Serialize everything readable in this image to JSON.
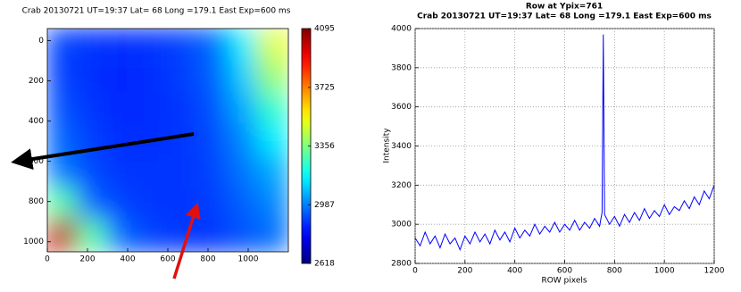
{
  "chart_data": [
    {
      "type": "heatmap",
      "title": "Crab 20130721 UT=19:37 Lat= 68 Long =179.1 East  Exp=600 ms",
      "xlim": [
        0,
        1200
      ],
      "ylim": [
        1050,
        -60
      ],
      "xticks": [
        0,
        200,
        400,
        600,
        800,
        1000
      ],
      "yticks": [
        0,
        200,
        400,
        600,
        800,
        1000
      ],
      "colormap": "jet",
      "clim": [
        2618,
        4095
      ],
      "cticks": [
        2618,
        2987,
        3356,
        3725,
        4095
      ],
      "values": [
        [
          2900,
          2880,
          2870,
          2880,
          2900,
          2950,
          3150,
          3500
        ],
        [
          2900,
          2870,
          2860,
          2870,
          2890,
          2940,
          3100,
          3400
        ],
        [
          2920,
          2880,
          2860,
          2870,
          2880,
          2920,
          3050,
          3250
        ],
        [
          2950,
          2890,
          2870,
          2870,
          2880,
          2910,
          3000,
          3150
        ],
        [
          2980,
          2910,
          2880,
          2880,
          2880,
          2900,
          2970,
          3050
        ],
        [
          3300,
          2950,
          2900,
          2880,
          2880,
          2890,
          2940,
          3000
        ],
        [
          4000,
          3300,
          2950,
          2900,
          2880,
          2880,
          2920,
          2960
        ]
      ]
    },
    {
      "type": "line",
      "title": "Row at Ypix=761",
      "subtitle": "Crab 20130721 UT=19:37 Lat= 68 Long =179.1 East  Exp=600 ms",
      "x_label": "ROW pixels",
      "y_label": "Intensity",
      "xlim": [
        0,
        1200
      ],
      "ylim": [
        2800,
        4000
      ],
      "xticks": [
        0,
        200,
        400,
        600,
        800,
        1000,
        1200
      ],
      "yticks": [
        2800,
        3000,
        3200,
        3400,
        3600,
        3800,
        4000
      ],
      "grid": true,
      "color": "#0000ff",
      "x": [
        0,
        20,
        40,
        60,
        80,
        100,
        120,
        140,
        160,
        180,
        200,
        220,
        240,
        260,
        280,
        300,
        320,
        340,
        360,
        380,
        400,
        420,
        440,
        460,
        480,
        500,
        520,
        540,
        560,
        580,
        600,
        620,
        640,
        660,
        680,
        700,
        720,
        740,
        750,
        755,
        760,
        780,
        800,
        820,
        840,
        860,
        880,
        900,
        920,
        940,
        960,
        980,
        1000,
        1020,
        1040,
        1060,
        1080,
        1100,
        1120,
        1140,
        1160,
        1180,
        1200
      ],
      "values": [
        2930,
        2890,
        2960,
        2900,
        2940,
        2880,
        2950,
        2900,
        2930,
        2870,
        2940,
        2900,
        2960,
        2910,
        2950,
        2900,
        2970,
        2920,
        2960,
        2910,
        2980,
        2930,
        2970,
        2940,
        3000,
        2950,
        2990,
        2960,
        3010,
        2960,
        3000,
        2970,
        3020,
        2970,
        3010,
        2980,
        3030,
        2990,
        3060,
        3970,
        3050,
        3000,
        3040,
        2990,
        3050,
        3010,
        3060,
        3020,
        3080,
        3030,
        3070,
        3040,
        3100,
        3050,
        3090,
        3070,
        3120,
        3080,
        3140,
        3100,
        3170,
        3130,
        3200
      ]
    }
  ]
}
